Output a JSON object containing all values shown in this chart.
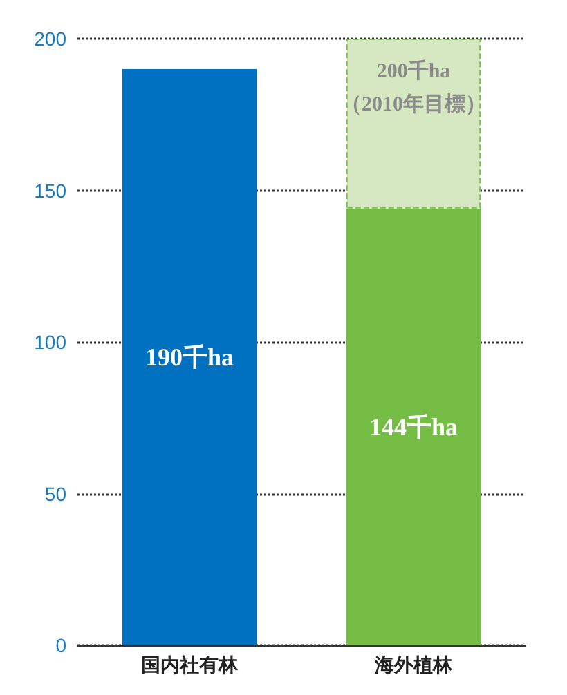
{
  "chart_data": {
    "type": "bar",
    "stacked": true,
    "categories": [
      "国内社有林",
      "海外植林"
    ],
    "series": [
      {
        "colors": [
          "#0070c0",
          "#76bd45"
        ],
        "values": [
          190,
          144
        ],
        "value_labels": [
          "190千ha",
          "144千ha"
        ]
      },
      {
        "color": "#d5e8c2",
        "line_style": "dashed",
        "values": [
          null,
          56
        ]
      }
    ],
    "annotations": [
      "200千ha\n（2010年目標）"
    ],
    "ylim": [
      0,
      200
    ],
    "yticks": [
      0,
      50,
      100,
      150,
      200
    ],
    "grid": "y"
  }
}
